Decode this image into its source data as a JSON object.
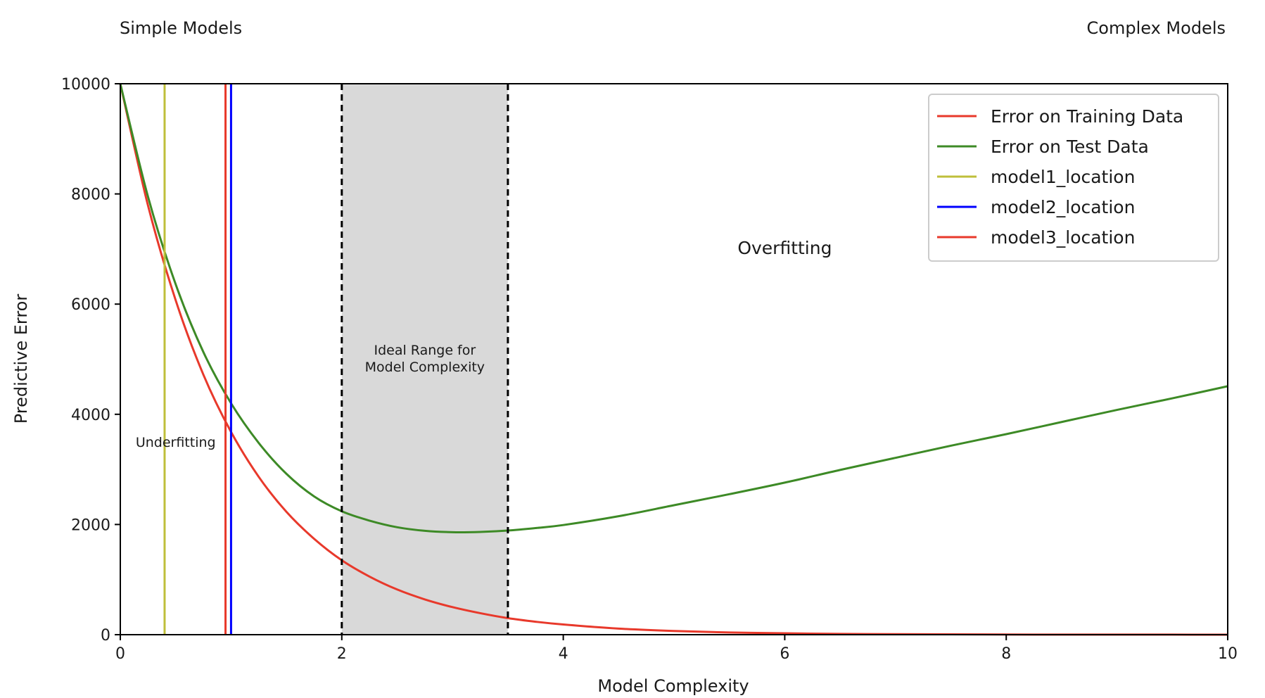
{
  "chart_data": {
    "type": "line",
    "xlabel": "Model Complexity",
    "ylabel": "Predictive Error",
    "xlim": [
      0,
      10
    ],
    "ylim": [
      0,
      10000
    ],
    "xticks": [
      0,
      2,
      4,
      6,
      8,
      10
    ],
    "xtick_labels": [
      "0",
      "2",
      "4",
      "6",
      "8",
      "10"
    ],
    "yticks": [
      0,
      2000,
      4000,
      6000,
      8000,
      10000
    ],
    "ytick_labels": [
      "0",
      "2000",
      "4000",
      "6000",
      "8000",
      "10000"
    ],
    "grid": false,
    "legend_position": "top-right",
    "top_left_label": "Simple Models",
    "top_right_label": "Complex Models",
    "series": [
      {
        "name": "Error on Training Data",
        "color": "#e8392b",
        "x": [
          0,
          0.25,
          0.5,
          0.75,
          1,
          1.25,
          1.5,
          1.75,
          2,
          2.25,
          2.5,
          2.75,
          3,
          3.25,
          3.5,
          3.75,
          4,
          4.5,
          5,
          5.5,
          6,
          6.5,
          7,
          7.5,
          8,
          8.5,
          9,
          9.5,
          10
        ],
        "values": [
          10000,
          7790,
          6070,
          4720,
          3680,
          2865,
          2230,
          1740,
          1350,
          1055,
          820,
          640,
          500,
          390,
          300,
          235,
          185,
          110,
          67,
          40,
          25,
          15,
          9,
          6,
          3,
          2,
          1,
          1,
          0
        ]
      },
      {
        "name": "Error on Test Data",
        "color": "#3d8a26",
        "x": [
          0,
          0.25,
          0.5,
          0.75,
          1,
          1.25,
          1.5,
          1.75,
          2,
          2.25,
          2.5,
          2.75,
          3,
          3.25,
          3.5,
          3.75,
          4,
          4.5,
          5,
          5.5,
          6,
          6.5,
          7,
          7.5,
          8,
          8.5,
          9,
          9.5,
          10
        ],
        "values": [
          10000,
          7950,
          6360,
          5130,
          4200,
          3480,
          2920,
          2510,
          2240,
          2070,
          1950,
          1885,
          1860,
          1865,
          1890,
          1935,
          1990,
          2150,
          2350,
          2550,
          2760,
          2990,
          3210,
          3430,
          3640,
          3860,
          4080,
          4290,
          4510
        ]
      }
    ],
    "vertical_lines": [
      {
        "name": "model1_location",
        "x": 0.4,
        "color": "#bfbf3a"
      },
      {
        "name": "model2_location",
        "x": 1.0,
        "color": "#0000ff"
      },
      {
        "name": "model3_location",
        "x": 0.95,
        "color": "#e8392b"
      }
    ],
    "shaded_region": {
      "x_start": 2.0,
      "x_end": 3.5,
      "color": "#d9d9d9",
      "label_line1": "Ideal Range for",
      "label_line2": "Model Complexity"
    },
    "annotations": [
      {
        "text": "Underfitting",
        "x": 0.5,
        "y": 3500
      },
      {
        "text": "Overfitting",
        "x": 6.0,
        "y": 7000
      }
    ]
  }
}
